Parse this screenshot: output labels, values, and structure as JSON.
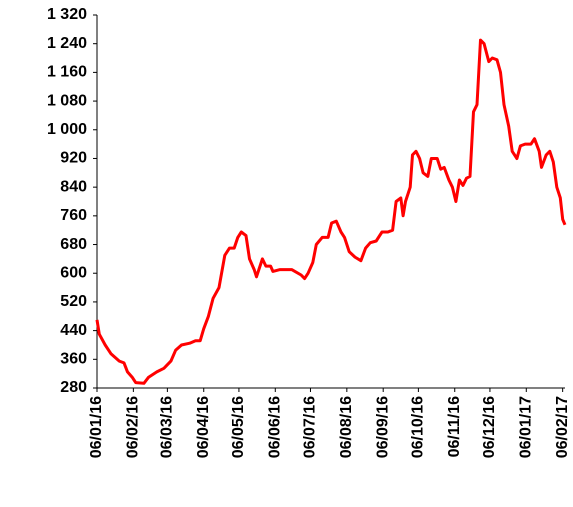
{
  "chart_data": {
    "type": "line",
    "x": [
      "2016-01-06",
      "2016-01-08",
      "2016-01-13",
      "2016-01-18",
      "2016-01-25",
      "2016-01-29",
      "2016-02-01",
      "2016-02-05",
      "2016-02-08",
      "2016-02-15",
      "2016-02-19",
      "2016-02-26",
      "2016-03-03",
      "2016-03-09",
      "2016-03-13",
      "2016-03-18",
      "2016-03-25",
      "2016-03-30",
      "2016-04-03",
      "2016-04-06",
      "2016-04-10",
      "2016-04-14",
      "2016-04-19",
      "2016-04-24",
      "2016-04-28",
      "2016-05-02",
      "2016-05-05",
      "2016-05-08",
      "2016-05-12",
      "2016-05-15",
      "2016-05-19",
      "2016-05-21",
      "2016-05-26",
      "2016-05-29",
      "2016-06-02",
      "2016-06-04",
      "2016-06-10",
      "2016-06-20",
      "2016-06-28",
      "2016-07-01",
      "2016-07-04",
      "2016-07-08",
      "2016-07-11",
      "2016-07-16",
      "2016-07-21",
      "2016-07-24",
      "2016-07-28",
      "2016-08-01",
      "2016-08-04",
      "2016-08-08",
      "2016-08-13",
      "2016-08-18",
      "2016-08-22",
      "2016-08-26",
      "2016-08-31",
      "2016-09-05",
      "2016-09-10",
      "2016-09-14",
      "2016-09-17",
      "2016-09-21",
      "2016-09-23",
      "2016-09-25",
      "2016-09-29",
      "2016-10-01",
      "2016-10-04",
      "2016-10-07",
      "2016-10-10",
      "2016-10-14",
      "2016-10-17",
      "2016-10-22",
      "2016-10-25",
      "2016-10-28",
      "2016-11-01",
      "2016-11-04",
      "2016-11-07",
      "2016-11-10",
      "2016-11-13",
      "2016-11-16",
      "2016-11-19",
      "2016-11-22",
      "2016-11-25",
      "2016-11-28",
      "2016-12-01",
      "2016-12-05",
      "2016-12-08",
      "2016-12-12",
      "2016-12-15",
      "2016-12-18",
      "2016-12-22",
      "2016-12-25",
      "2016-12-29",
      "2017-01-01",
      "2017-01-05",
      "2017-01-10",
      "2017-01-13",
      "2017-01-17",
      "2017-01-19",
      "2017-01-23",
      "2017-01-26",
      "2017-01-29",
      "2017-02-01",
      "2017-02-04",
      "2017-02-06",
      "2017-02-08"
    ],
    "series": [
      {
        "color": "#ff0000",
        "values": [
          470,
          430,
          400,
          375,
          355,
          350,
          325,
          310,
          295,
          293,
          310,
          325,
          335,
          355,
          385,
          400,
          405,
          412,
          412,
          445,
          480,
          530,
          560,
          650,
          670,
          670,
          700,
          715,
          705,
          640,
          610,
          590,
          640,
          620,
          620,
          605,
          610,
          610,
          595,
          585,
          600,
          630,
          680,
          700,
          700,
          740,
          745,
          715,
          700,
          660,
          645,
          635,
          670,
          685,
          690,
          715,
          715,
          720,
          800,
          810,
          760,
          800,
          840,
          930,
          940,
          920,
          880,
          870,
          920,
          920,
          890,
          895,
          860,
          840,
          800,
          860,
          845,
          865,
          870,
          1050,
          1070,
          1250,
          1240,
          1190,
          1200,
          1195,
          1160,
          1070,
          1010,
          940,
          920,
          955,
          960,
          960,
          975,
          940,
          895,
          930,
          940,
          910,
          840,
          810,
          750,
          735
        ]
      }
    ],
    "xlim": [
      "2016-01-06",
      "2017-02-08"
    ],
    "xticks": [
      {
        "value": "2016-01-06",
        "label": "06/01/16"
      },
      {
        "value": "2016-02-06",
        "label": "06/02/16"
      },
      {
        "value": "2016-03-06",
        "label": "06/03/16"
      },
      {
        "value": "2016-04-06",
        "label": "06/04/16"
      },
      {
        "value": "2016-05-06",
        "label": "06/05/16"
      },
      {
        "value": "2016-06-06",
        "label": "06/06/16"
      },
      {
        "value": "2016-07-06",
        "label": "06/07/16"
      },
      {
        "value": "2016-08-06",
        "label": "06/08/16"
      },
      {
        "value": "2016-09-06",
        "label": "06/09/16"
      },
      {
        "value": "2016-10-06",
        "label": "06/10/16"
      },
      {
        "value": "2016-11-06",
        "label": "06/11/16"
      },
      {
        "value": "2016-12-06",
        "label": "06/12/16"
      },
      {
        "value": "2017-01-06",
        "label": "06/01/17"
      },
      {
        "value": "2017-02-06",
        "label": "06/02/17"
      }
    ],
    "ylim": [
      280,
      1320
    ],
    "yticks": [
      280,
      360,
      440,
      520,
      600,
      680,
      760,
      840,
      920,
      {
        "value": 1000,
        "label": "1 000"
      },
      {
        "value": 1080,
        "label": "1 080"
      },
      {
        "value": 1160,
        "label": "1 160"
      },
      {
        "value": 1240,
        "label": "1 240"
      },
      {
        "value": 1320,
        "label": "1 320"
      }
    ]
  }
}
